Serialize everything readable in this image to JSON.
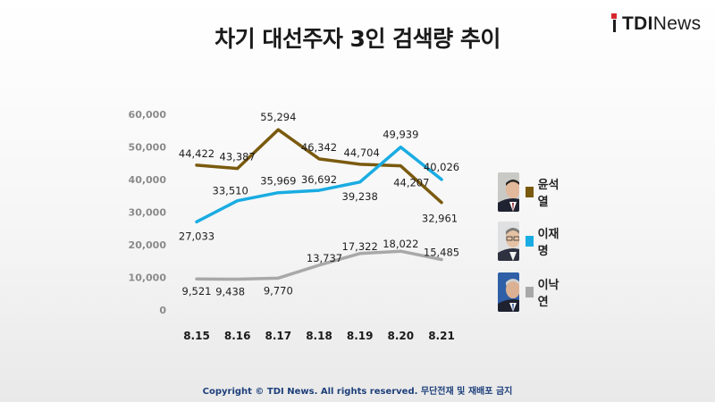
{
  "title": "차기 대선주자 3인 검색량 추이",
  "brand": {
    "bold": "TDI",
    "light": "News"
  },
  "footer": "Copyright © TDI News. All rights reserved. 무단전재 및 재배포 금지",
  "legend": [
    {
      "name": "윤석열",
      "color": "#7a5a0e",
      "icon": "portrait-man-dark-suit-icon"
    },
    {
      "name": "이재명",
      "color": "#19ace2",
      "icon": "portrait-man-glasses-icon"
    },
    {
      "name": "이낙연",
      "color": "#a8a8a8",
      "icon": "portrait-man-gray-hair-icon"
    }
  ],
  "chart_data": {
    "type": "line",
    "title": "차기 대선주자 3인 검색량 추이",
    "categories": [
      "8.15",
      "8.16",
      "8.17",
      "8.18",
      "8.19",
      "8.20",
      "8.21"
    ],
    "y_ticks": [
      "0",
      "10,000",
      "20,000",
      "30,000",
      "40,000",
      "50,000",
      "60,000"
    ],
    "ylim": [
      0,
      60000
    ],
    "grid": false,
    "legend_position": "right",
    "series": [
      {
        "name": "윤석열",
        "color": "#7a5a0e",
        "values": [
          44422,
          43387,
          55294,
          46342,
          44704,
          44207,
          32961
        ],
        "labels": [
          "44,422",
          "43,387",
          "55,294",
          "46,342",
          "44,704",
          "44,207",
          "32,961"
        ]
      },
      {
        "name": "이재명",
        "color": "#19ace2",
        "values": [
          27033,
          33510,
          35969,
          36692,
          39238,
          49939,
          40026
        ],
        "labels": [
          "27,033",
          "33,510",
          "35,969",
          "36,692",
          "39,238",
          "49,939",
          "40,026"
        ]
      },
      {
        "name": "이낙연",
        "color": "#a8a8a8",
        "values": [
          9521,
          9438,
          9770,
          13737,
          17322,
          18022,
          15485
        ],
        "labels": [
          "9,521",
          "9,438",
          "9,770",
          "13,737",
          "17,322",
          "18,022",
          "15,485"
        ]
      }
    ]
  }
}
